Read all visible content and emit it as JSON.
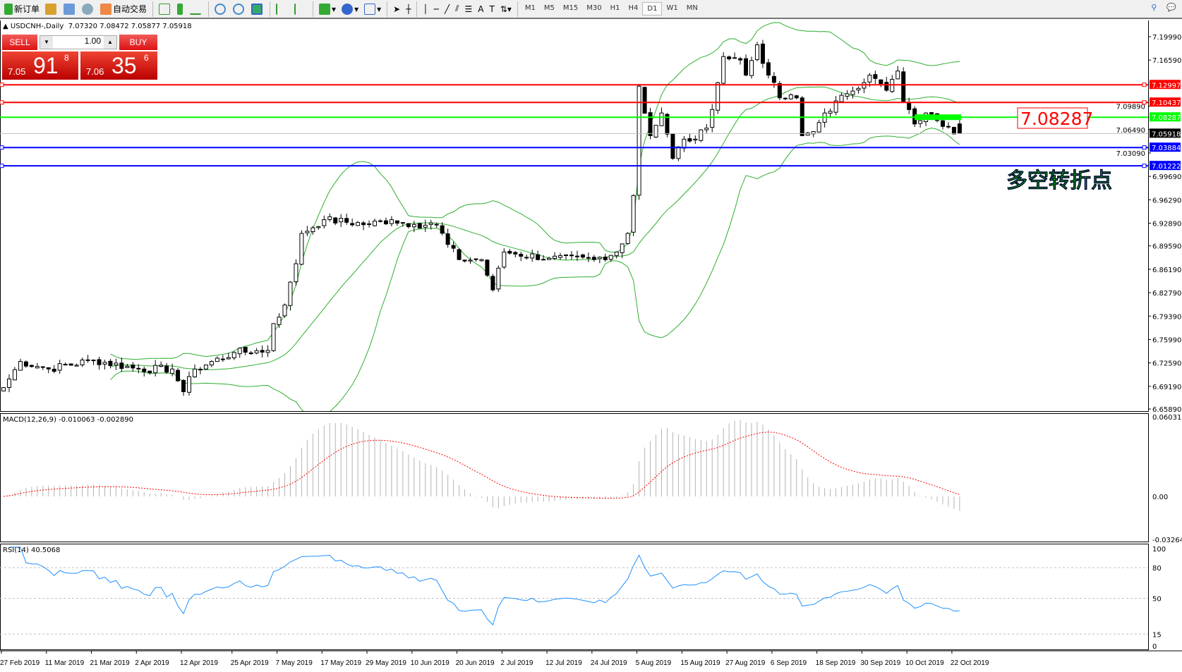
{
  "toolbar": {
    "new_order": "新订单",
    "auto_trading": "自动交易",
    "timeframes": [
      "M1",
      "M5",
      "M15",
      "M30",
      "H1",
      "H4",
      "D1",
      "W1",
      "MN"
    ],
    "active_timeframe": "D1"
  },
  "header": {
    "symbol": "USDCNH-,Daily",
    "ohlc": "7.07320 7.08472 7.05877 7.05918"
  },
  "trade": {
    "sell_label": "SELL",
    "buy_label": "BUY",
    "lot": "1.00",
    "sell_small": "7.05",
    "sell_big": "91",
    "sell_sup": "8",
    "buy_small": "7.06",
    "buy_big": "35",
    "buy_sup": "6"
  },
  "annotation": {
    "price_box": "7.08287",
    "text": "多空转折点",
    "text_color": "#00c800"
  },
  "colors": {
    "bollinger": "#2fae2f",
    "rsi": "#1e90ff",
    "macd_hist": "#b4b4b4",
    "macd_signal": "#ff0000",
    "resistance": "#ff0000",
    "pivot": "#00ff00",
    "support": "#0000ff"
  },
  "chart_data": {
    "type": "candlestick",
    "symbol": "USDCNH-",
    "timeframe": "Daily",
    "price_axis_ticks": [
      "7.19990",
      "7.16590",
      "7.09890",
      "7.06490",
      "7.03090",
      "6.99690",
      "6.96290",
      "6.92890",
      "6.89590",
      "6.86190",
      "6.82790",
      "6.79390",
      "6.75990",
      "6.72590",
      "6.69190",
      "6.65890"
    ],
    "horizontal_lines": [
      {
        "price": "7.12997",
        "color": "#ff0000"
      },
      {
        "price": "7.10437",
        "color": "#ff0000"
      },
      {
        "price": "7.08287",
        "color": "#00ff00"
      },
      {
        "price": "7.05918",
        "color": "#000000",
        "current": true
      },
      {
        "price": "7.03884",
        "color": "#0000ff"
      },
      {
        "price": "7.01222",
        "color": "#0000ff"
      }
    ],
    "approx_closes": [
      [
        "2019-02-27",
        6.69
      ],
      [
        "2019-03-04",
        6.728
      ],
      [
        "2019-03-11",
        6.717
      ],
      [
        "2019-03-21",
        6.73
      ],
      [
        "2019-04-02",
        6.717
      ],
      [
        "2019-04-10",
        6.717
      ],
      [
        "2019-04-12",
        6.684
      ],
      [
        "2019-04-16",
        6.717
      ],
      [
        "2019-04-25",
        6.741
      ],
      [
        "2019-05-03",
        6.744
      ],
      [
        "2019-05-06",
        6.783
      ],
      [
        "2019-05-08",
        6.81
      ],
      [
        "2019-05-10",
        6.87
      ],
      [
        "2019-05-13",
        6.914
      ],
      [
        "2019-05-17",
        6.934
      ],
      [
        "2019-05-29",
        6.927
      ],
      [
        "2019-06-04",
        6.934
      ],
      [
        "2019-06-10",
        6.927
      ],
      [
        "2019-06-14",
        6.927
      ],
      [
        "2019-06-18",
        6.898
      ],
      [
        "2019-06-20",
        6.876
      ],
      [
        "2019-06-26",
        6.876
      ],
      [
        "2019-06-28",
        6.832
      ],
      [
        "2019-07-02",
        6.887
      ],
      [
        "2019-07-12",
        6.878
      ],
      [
        "2019-07-24",
        6.876
      ],
      [
        "2019-07-30",
        6.887
      ],
      [
        "2019-08-01",
        6.914
      ],
      [
        "2019-08-02",
        6.969
      ],
      [
        "2019-08-05",
        7.128
      ],
      [
        "2019-08-07",
        7.056
      ],
      [
        "2019-08-09",
        7.089
      ],
      [
        "2019-08-13",
        7.023
      ],
      [
        "2019-08-15",
        7.051
      ],
      [
        "2019-08-19",
        7.051
      ],
      [
        "2019-08-21",
        7.067
      ],
      [
        "2019-08-23",
        7.133
      ],
      [
        "2019-08-26",
        7.171
      ],
      [
        "2019-08-29",
        7.166
      ],
      [
        "2019-08-30",
        7.144
      ],
      [
        "2019-09-03",
        7.188
      ],
      [
        "2019-09-05",
        7.144
      ],
      [
        "2019-09-09",
        7.111
      ],
      [
        "2019-09-12",
        7.111
      ],
      [
        "2019-09-13",
        7.056
      ],
      [
        "2019-09-17",
        7.062
      ],
      [
        "2019-09-19",
        7.089
      ],
      [
        "2019-09-25",
        7.117
      ],
      [
        "2019-10-01",
        7.144
      ],
      [
        "2019-10-04",
        7.122
      ],
      [
        "2019-10-08",
        7.15
      ],
      [
        "2019-10-09",
        7.106
      ],
      [
        "2019-10-11",
        7.073
      ],
      [
        "2019-10-15",
        7.089
      ],
      [
        "2019-10-17",
        7.078
      ],
      [
        "2019-10-21",
        7.069
      ],
      [
        "2019-10-23",
        7.05918
      ]
    ],
    "last_bar": {
      "open": 7.0732,
      "high": 7.08472,
      "low": 7.05877,
      "close": 7.05918
    },
    "indicators": {
      "bollinger": {
        "period": 20,
        "deviation": 2
      },
      "macd": {
        "label": "MACD(12,26,9) -0.010063 -0.002890",
        "axis": [
          "0.060317",
          "0.00",
          "-0.032648"
        ]
      },
      "rsi": {
        "label": "RSI(14) 40.5068",
        "axis": [
          "100",
          "80",
          "50",
          "15",
          "0"
        ],
        "levels": [
          80,
          50,
          15
        ]
      }
    },
    "time_labels": [
      "27 Feb 2019",
      "11 Mar 2019",
      "21 Mar 2019",
      "2 Apr 2019",
      "12 Apr 2019",
      "25 Apr 2019",
      "7 May 2019",
      "17 May 2019",
      "29 May 2019",
      "10 Jun 2019",
      "20 Jun 2019",
      "2 Jul 2019",
      "12 Jul 2019",
      "24 Jul 2019",
      "5 Aug 2019",
      "15 Aug 2019",
      "27 Aug 2019",
      "6 Sep 2019",
      "18 Sep 2019",
      "30 Sep 2019",
      "10 Oct 2019",
      "22 Oct 2019"
    ]
  }
}
